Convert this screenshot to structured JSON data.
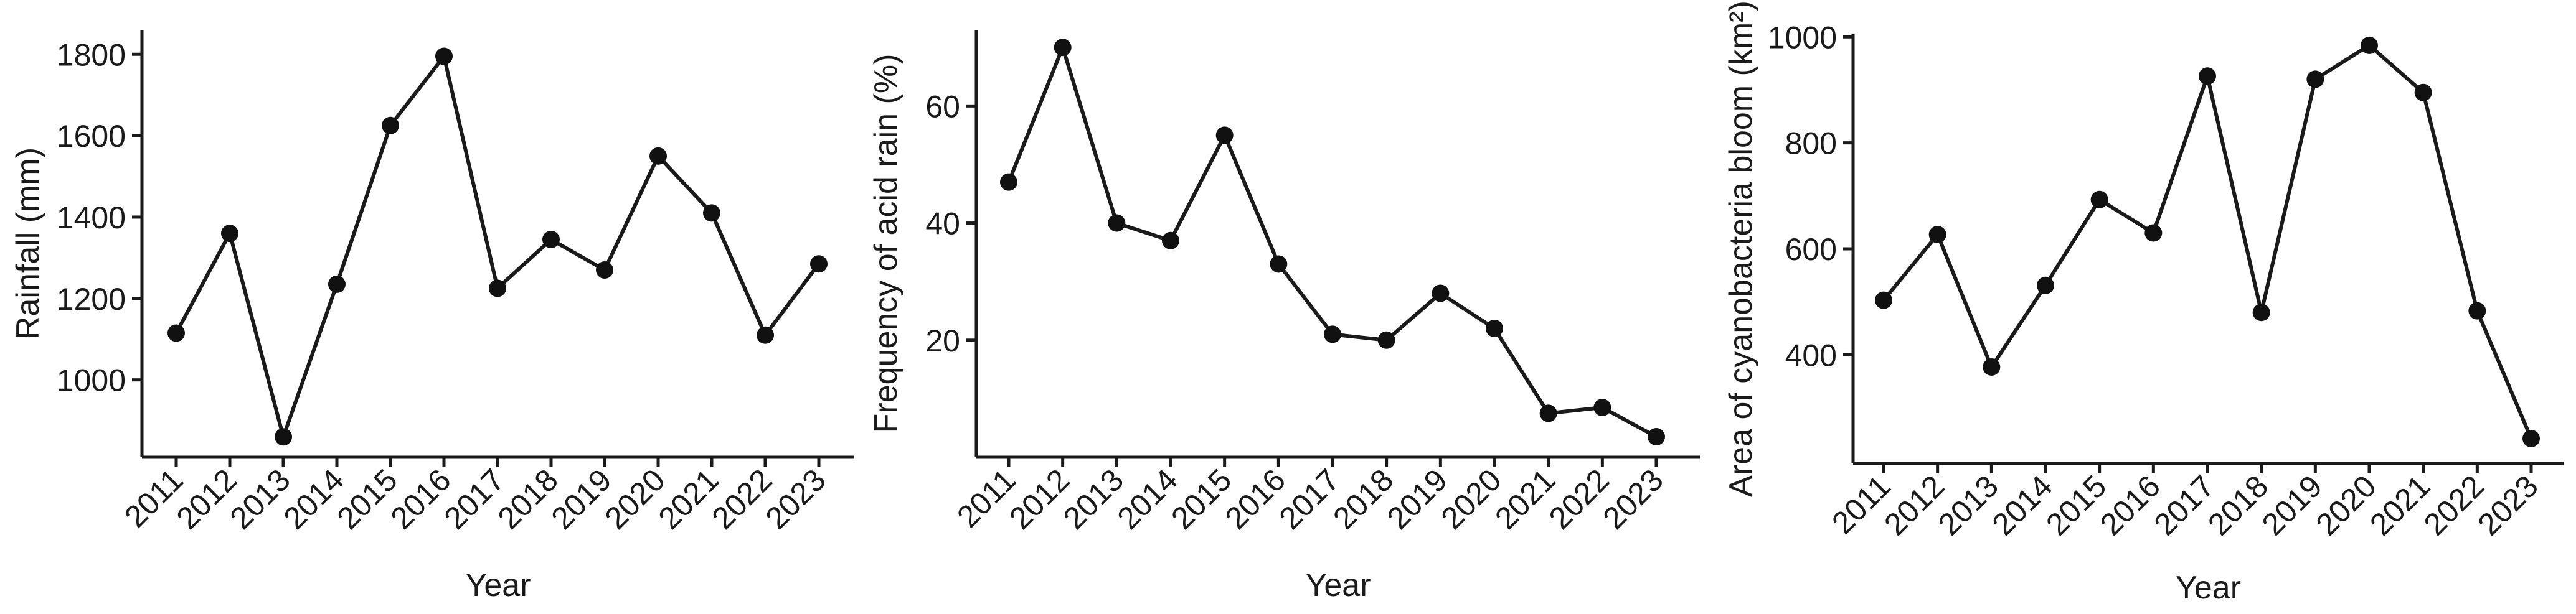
{
  "chart_data": [
    {
      "type": "line",
      "title": "",
      "xlabel": "Year",
      "ylabel": "Rainfall (mm)",
      "x": [
        "2011",
        "2012",
        "2013",
        "2014",
        "2015",
        "2016",
        "2017",
        "2018",
        "2019",
        "2020",
        "2021",
        "2022",
        "2023"
      ],
      "series": [
        {
          "values": [
            1115,
            1360,
            860,
            1235,
            1625,
            1795,
            1225,
            1345,
            1270,
            1550,
            1410,
            1110,
            1285
          ]
        }
      ],
      "ylim": [
        810,
        1860
      ],
      "yticks": [
        1000,
        1200,
        1400,
        1600,
        1800
      ],
      "grid": false
    },
    {
      "type": "line",
      "title": "",
      "xlabel": "Year",
      "ylabel": "Frequency of acid rain (%)",
      "x": [
        "2011",
        "2012",
        "2013",
        "2014",
        "2015",
        "2016",
        "2017",
        "2018",
        "2019",
        "2020",
        "2021",
        "2022",
        "2023"
      ],
      "series": [
        {
          "values": [
            47,
            70,
            40,
            37,
            55,
            33,
            21,
            20,
            28,
            22,
            7.5,
            8.5,
            3.5
          ]
        }
      ],
      "ylim": [
        0,
        73
      ],
      "yticks": [
        20,
        40,
        60
      ],
      "grid": false
    },
    {
      "type": "line",
      "title": "",
      "xlabel": "Year",
      "ylabel": "Area of cyanobacteria bloom (km²)",
      "x": [
        "2011",
        "2012",
        "2013",
        "2014",
        "2015",
        "2016",
        "2017",
        "2018",
        "2019",
        "2020",
        "2021",
        "2022",
        "2023"
      ],
      "series": [
        {
          "values": [
            503,
            627,
            377,
            531,
            693,
            630,
            926,
            480,
            920,
            984,
            895,
            483,
            242
          ]
        }
      ],
      "ylim": [
        195,
        1005
      ],
      "yticks": [
        400,
        600,
        800,
        1000
      ],
      "grid": false
    }
  ]
}
